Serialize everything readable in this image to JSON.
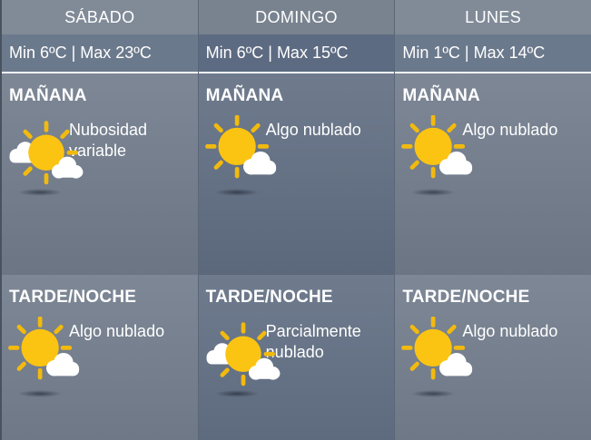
{
  "theme": {
    "sun_yellow": "#fbc412",
    "ray_yellow": "#f2ba0e",
    "cloud_white": "#ffffff",
    "text_color": "#ffffff",
    "header_bg": "#818b98",
    "header_bg_selected": "#79838f",
    "minmax_bg": "#6b798c",
    "minmax_bg_selected": "#5d6b82",
    "divider_white": "#f3f5f8"
  },
  "columns": [
    {
      "day": "SÁBADO",
      "minmax": "Min 6ºC | Max 23ºC",
      "selected": false,
      "morning": {
        "label": "MAÑANA",
        "description": "Nubosidad variable",
        "icon": "sun-two-clouds-icon"
      },
      "evening": {
        "label": "TARDE/NOCHE",
        "description": "Algo nublado",
        "icon": "sun-small-cloud-icon"
      }
    },
    {
      "day": "DOMINGO",
      "minmax": "Min 6ºC | Max 15ºC",
      "selected": true,
      "morning": {
        "label": "MAÑANA",
        "description": "Algo nublado",
        "icon": "sun-small-cloud-icon"
      },
      "evening": {
        "label": "TARDE/NOCHE",
        "description": "Parcialmente nublado",
        "icon": "sun-two-clouds-icon"
      }
    },
    {
      "day": "LUNES",
      "minmax": "Min 1ºC | Max 14ºC",
      "selected": false,
      "morning": {
        "label": "MAÑANA",
        "description": "Algo nublado",
        "icon": "sun-small-cloud-icon"
      },
      "evening": {
        "label": "TARDE/NOCHE",
        "description": "Algo nublado",
        "icon": "sun-small-cloud-icon"
      }
    }
  ]
}
